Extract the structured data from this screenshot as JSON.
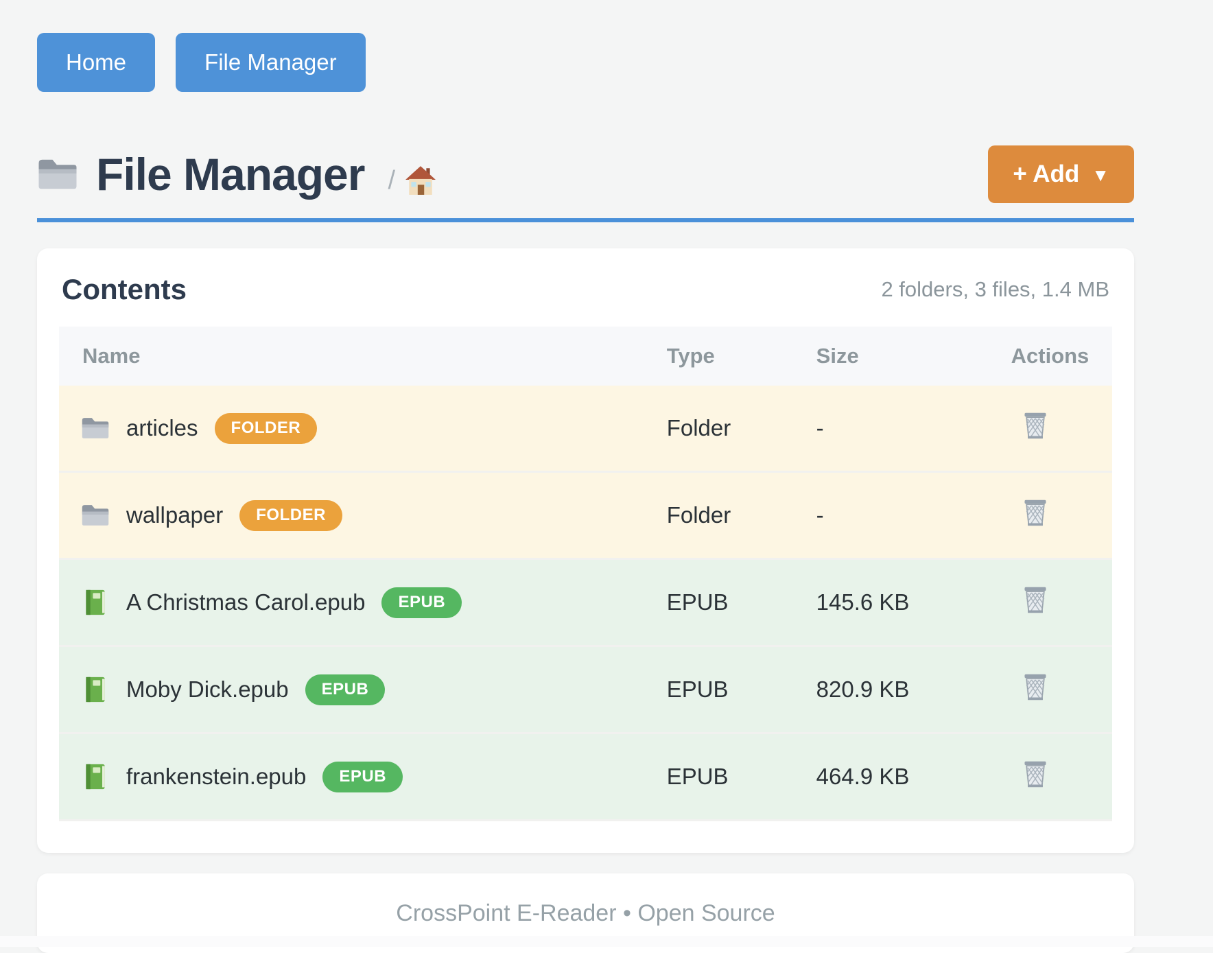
{
  "nav": {
    "home_label": "Home",
    "file_manager_label": "File Manager"
  },
  "header": {
    "title": "File Manager",
    "title_icon": "folder-icon",
    "breadcrumb_separator": "/",
    "breadcrumb_home_icon": "house-icon",
    "add_label": "+ Add",
    "add_caret": "▼"
  },
  "panel": {
    "title": "Contents",
    "summary": "2 folders, 3 files, 1.4 MB",
    "columns": [
      "Name",
      "Type",
      "Size",
      "Actions"
    ],
    "rows": [
      {
        "name": "articles",
        "icon": "folder",
        "badge": "FOLDER",
        "type": "Folder",
        "size": "-",
        "kind": "folder"
      },
      {
        "name": "wallpaper",
        "icon": "folder",
        "badge": "FOLDER",
        "type": "Folder",
        "size": "-",
        "kind": "folder"
      },
      {
        "name": "A Christmas Carol.epub",
        "icon": "book",
        "badge": "EPUB",
        "type": "EPUB",
        "size": "145.6 KB",
        "kind": "epub"
      },
      {
        "name": "Moby Dick.epub",
        "icon": "book",
        "badge": "EPUB",
        "type": "EPUB",
        "size": "820.9 KB",
        "kind": "epub"
      },
      {
        "name": "frankenstein.epub",
        "icon": "book",
        "badge": "EPUB",
        "type": "EPUB",
        "size": "464.9 KB",
        "kind": "epub"
      }
    ],
    "delete_icon": "trash-icon"
  },
  "footer": {
    "text": "CrossPoint E-Reader • Open Source"
  },
  "colors": {
    "accent_blue": "#4e92d8",
    "rule_blue": "#4a90d9",
    "accent_orange": "#dd8b3d",
    "badge_orange": "#eba23c",
    "badge_green": "#55b761",
    "folder_row_bg": "#fdf6e3",
    "epub_row_bg": "#e8f3ea",
    "heading_dark": "#2e3b4e",
    "text_dark": "#2b3237",
    "muted_gray": "#8b959b"
  }
}
